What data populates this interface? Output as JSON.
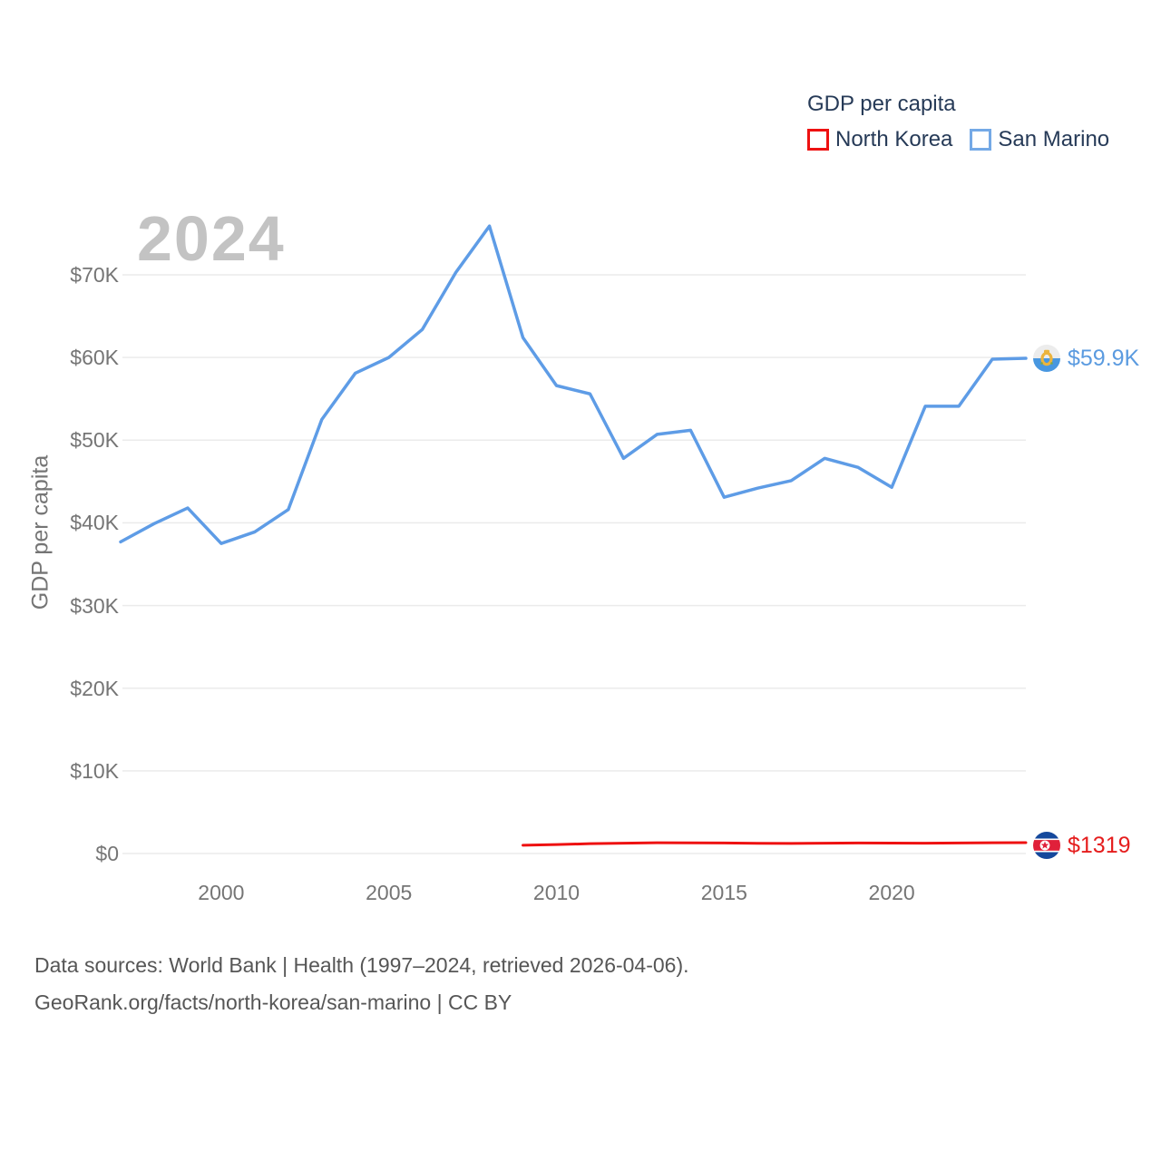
{
  "watermark": "2024",
  "legend": {
    "title": "GDP per capita",
    "items": [
      {
        "label": "North Korea",
        "color": "#ee1111"
      },
      {
        "label": "San Marino",
        "color": "#74a9e6"
      }
    ]
  },
  "axes": {
    "y_label": "GDP per capita",
    "y_ticks": [
      {
        "value": 70000,
        "label": "$70K"
      },
      {
        "value": 60000,
        "label": "$60K"
      },
      {
        "value": 50000,
        "label": "$50K"
      },
      {
        "value": 40000,
        "label": "$40K"
      },
      {
        "value": 30000,
        "label": "$30K"
      },
      {
        "value": 20000,
        "label": "$20K"
      },
      {
        "value": 10000,
        "label": "$10K"
      },
      {
        "value": 0,
        "label": "$0"
      }
    ],
    "x_ticks": [
      {
        "value": 2000,
        "label": "2000"
      },
      {
        "value": 2005,
        "label": "2005"
      },
      {
        "value": 2010,
        "label": "2010"
      },
      {
        "value": 2015,
        "label": "2015"
      },
      {
        "value": 2020,
        "label": "2020"
      }
    ]
  },
  "chart_data": {
    "type": "line",
    "title": "GDP per capita",
    "xlabel": "",
    "ylabel": "GDP per capita",
    "x_range": [
      1997,
      2024
    ],
    "ylim": [
      0,
      70000
    ],
    "grid": "horizontal",
    "legend_position": "top-right",
    "series": [
      {
        "name": "San Marino",
        "color": "#5e9ce6",
        "stroke_width": 3.5,
        "end_label": "$59.9K",
        "x": [
          1997,
          1998,
          1999,
          2000,
          2001,
          2002,
          2003,
          2004,
          2005,
          2006,
          2007,
          2008,
          2009,
          2010,
          2011,
          2012,
          2013,
          2014,
          2015,
          2016,
          2017,
          2018,
          2019,
          2020,
          2021,
          2022,
          2023,
          2024
        ],
        "values": [
          37700,
          39900,
          41800,
          37500,
          38900,
          41600,
          52500,
          58100,
          60000,
          63400,
          70300,
          75900,
          62400,
          56600,
          55600,
          47800,
          50700,
          51200,
          43100,
          44200,
          45100,
          47800,
          46700,
          44300,
          54100,
          54100,
          59800,
          59900
        ]
      },
      {
        "name": "North Korea",
        "color": "#ee1111",
        "stroke_width": 3,
        "end_label": "$1319",
        "x": [
          2009,
          2010,
          2011,
          2012,
          2013,
          2014,
          2015,
          2016,
          2017,
          2018,
          2019,
          2020,
          2021,
          2022,
          2023,
          2024
        ],
        "values": [
          1000,
          1080,
          1190,
          1250,
          1300,
          1290,
          1270,
          1240,
          1220,
          1250,
          1270,
          1260,
          1250,
          1280,
          1300,
          1319
        ]
      }
    ]
  },
  "footer": {
    "line1": "Data sources: World Bank | Health (1997–2024, retrieved 2026-04-06).",
    "line2": "GeoRank.org/facts/north-korea/san-marino | CC BY"
  }
}
